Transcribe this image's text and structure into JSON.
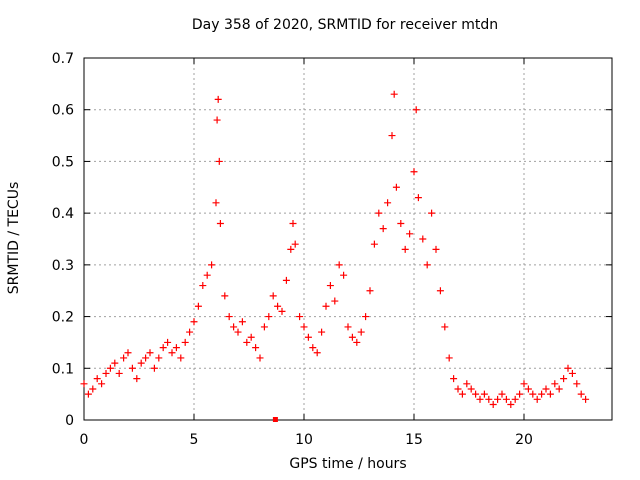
{
  "chart_data": {
    "type": "scatter",
    "title": "Day 358 of 2020, SRMTID for receiver mtdn",
    "xlabel": "GPS time / hours",
    "ylabel": "SRMTID / TECUs",
    "xlim": [
      0,
      24
    ],
    "ylim": [
      0,
      0.7
    ],
    "xticks": [
      "0",
      "5",
      "10",
      "15",
      "20"
    ],
    "yticks": [
      "0",
      "0.1",
      "0.2",
      "0.3",
      "0.4",
      "0.5",
      "0.6",
      "0.7"
    ],
    "grid": true,
    "marker": "+",
    "color": "#ff0000",
    "series": [
      {
        "name": "SRMTID",
        "x": [
          0.0,
          0.2,
          0.4,
          0.6,
          0.8,
          1.0,
          1.2,
          1.4,
          1.6,
          1.8,
          2.0,
          2.2,
          2.4,
          2.6,
          2.8,
          3.0,
          3.2,
          3.4,
          3.6,
          3.8,
          4.0,
          4.2,
          4.4,
          4.6,
          4.8,
          5.0,
          5.2,
          5.4,
          5.6,
          5.8,
          6.0,
          6.05,
          6.1,
          6.15,
          6.2,
          6.4,
          6.6,
          6.8,
          7.0,
          7.2,
          7.4,
          7.6,
          7.8,
          8.0,
          8.2,
          8.4,
          8.6,
          8.8,
          9.0,
          9.2,
          9.4,
          9.5,
          9.6,
          9.8,
          10.0,
          10.2,
          10.4,
          10.6,
          10.8,
          11.0,
          11.2,
          11.4,
          11.6,
          11.8,
          12.0,
          12.2,
          12.4,
          12.6,
          12.8,
          13.0,
          13.2,
          13.4,
          13.6,
          13.8,
          14.0,
          14.1,
          14.2,
          14.4,
          14.6,
          14.8,
          15.0,
          15.1,
          15.2,
          15.4,
          15.6,
          15.8,
          16.0,
          16.2,
          16.4,
          16.6,
          16.8,
          17.0,
          17.2,
          17.4,
          17.6,
          17.8,
          18.0,
          18.2,
          18.4,
          18.6,
          18.8,
          19.0,
          19.2,
          19.4,
          19.6,
          19.8,
          20.0,
          20.2,
          20.4,
          20.6,
          20.8,
          21.0,
          21.2,
          21.4,
          21.6,
          21.8,
          22.0,
          22.2,
          22.4,
          22.6,
          22.8
        ],
        "y": [
          0.07,
          0.05,
          0.06,
          0.08,
          0.07,
          0.09,
          0.1,
          0.11,
          0.09,
          0.12,
          0.13,
          0.1,
          0.08,
          0.11,
          0.12,
          0.13,
          0.1,
          0.12,
          0.14,
          0.15,
          0.13,
          0.14,
          0.12,
          0.15,
          0.17,
          0.19,
          0.22,
          0.26,
          0.28,
          0.3,
          0.42,
          0.58,
          0.62,
          0.5,
          0.38,
          0.24,
          0.2,
          0.18,
          0.17,
          0.19,
          0.15,
          0.16,
          0.14,
          0.12,
          0.18,
          0.2,
          0.24,
          0.22,
          0.21,
          0.27,
          0.33,
          0.38,
          0.34,
          0.2,
          0.18,
          0.16,
          0.14,
          0.13,
          0.17,
          0.22,
          0.26,
          0.23,
          0.3,
          0.28,
          0.18,
          0.16,
          0.15,
          0.17,
          0.2,
          0.25,
          0.34,
          0.4,
          0.37,
          0.42,
          0.55,
          0.63,
          0.45,
          0.38,
          0.33,
          0.36,
          0.48,
          0.6,
          0.43,
          0.35,
          0.3,
          0.4,
          0.33,
          0.25,
          0.18,
          0.12,
          0.08,
          0.06,
          0.05,
          0.07,
          0.06,
          0.05,
          0.04,
          0.05,
          0.04,
          0.03,
          0.04,
          0.05,
          0.04,
          0.03,
          0.04,
          0.05,
          0.07,
          0.06,
          0.05,
          0.04,
          0.05,
          0.06,
          0.05,
          0.07,
          0.06,
          0.08,
          0.1,
          0.09,
          0.07,
          0.05,
          0.04
        ]
      }
    ],
    "outlier": {
      "x": 8.7,
      "y": 0.0
    }
  }
}
